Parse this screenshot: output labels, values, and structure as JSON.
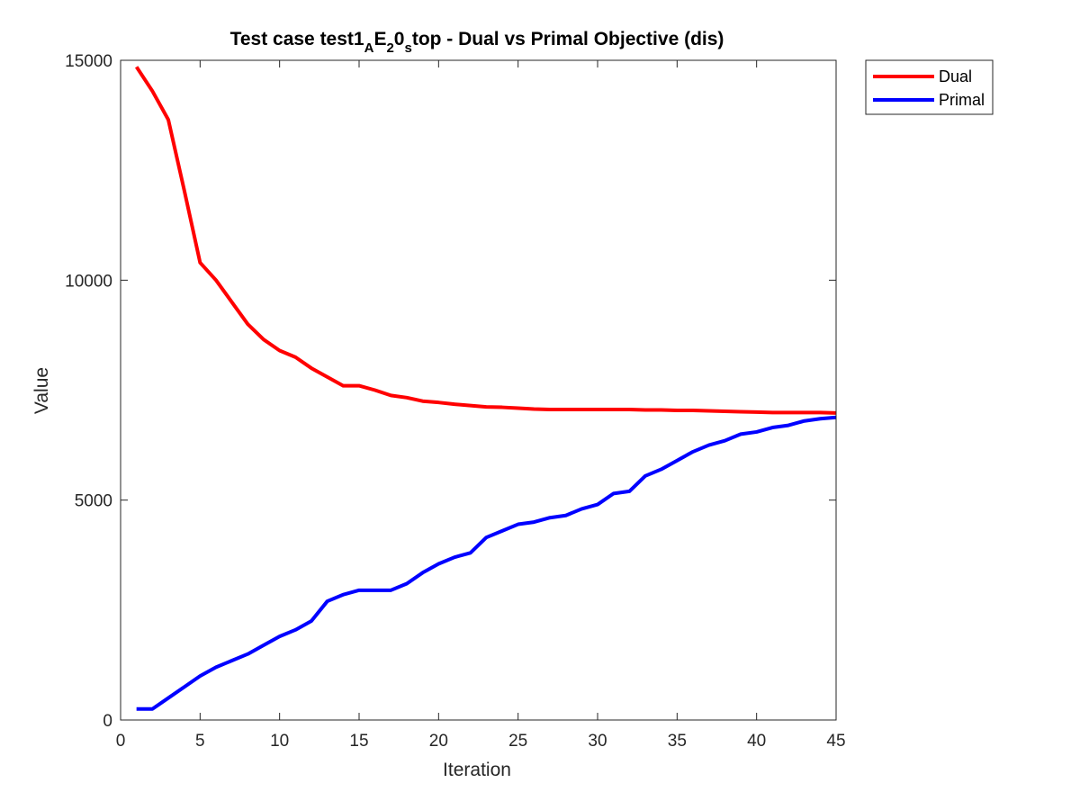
{
  "chart_data": {
    "type": "line",
    "title": {
      "parts": [
        {
          "text": "Test case test1",
          "style": "normal"
        },
        {
          "text": "A",
          "style": "sub"
        },
        {
          "text": "E",
          "style": "normal"
        },
        {
          "text": "2",
          "style": "sub"
        },
        {
          "text": "0",
          "style": "normal"
        },
        {
          "text": "s",
          "style": "sub"
        },
        {
          "text": "top - Dual vs Primal Objective (dis)",
          "style": "normal"
        }
      ]
    },
    "xlabel": "Iteration",
    "ylabel": "Value",
    "xlim": [
      0,
      45
    ],
    "ylim": [
      0,
      15000
    ],
    "xticks": [
      0,
      5,
      10,
      15,
      20,
      25,
      30,
      35,
      40,
      45
    ],
    "yticks": [
      0,
      5000,
      10000,
      15000
    ],
    "xtick_labels": [
      "0",
      "5",
      "10",
      "15",
      "20",
      "25",
      "30",
      "35",
      "40",
      "45"
    ],
    "ytick_labels": [
      "0",
      "5000",
      "10000",
      "15000"
    ],
    "grid": false,
    "legend_position": "outside-top-right",
    "x": [
      1,
      2,
      3,
      4,
      5,
      6,
      7,
      8,
      9,
      10,
      11,
      12,
      13,
      14,
      15,
      16,
      17,
      18,
      19,
      20,
      21,
      22,
      23,
      24,
      25,
      26,
      27,
      28,
      29,
      30,
      31,
      32,
      33,
      34,
      35,
      36,
      37,
      38,
      39,
      40,
      41,
      42,
      43,
      44,
      45
    ],
    "series": [
      {
        "name": "Dual",
        "color": "#ff0000",
        "values": [
          14850,
          14300,
          13650,
          12050,
          10400,
          10000,
          9500,
          9000,
          8650,
          8400,
          8250,
          8000,
          7800,
          7600,
          7600,
          7500,
          7380,
          7330,
          7250,
          7220,
          7180,
          7150,
          7120,
          7110,
          7090,
          7070,
          7060,
          7060,
          7060,
          7060,
          7060,
          7060,
          7050,
          7050,
          7040,
          7040,
          7030,
          7020,
          7010,
          7000,
          6990,
          6990,
          6990,
          6990,
          6980
        ]
      },
      {
        "name": "Primal",
        "color": "#0000ff",
        "values": [
          250,
          250,
          500,
          750,
          1000,
          1200,
          1350,
          1500,
          1700,
          1900,
          2050,
          2250,
          2700,
          2850,
          2950,
          2950,
          2950,
          3100,
          3350,
          3550,
          3700,
          3800,
          4150,
          4300,
          4450,
          4500,
          4600,
          4650,
          4800,
          4900,
          5150,
          5200,
          5550,
          5700,
          5900,
          6100,
          6250,
          6350,
          6500,
          6550,
          6650,
          6700,
          6800,
          6850,
          6880
        ]
      }
    ]
  }
}
